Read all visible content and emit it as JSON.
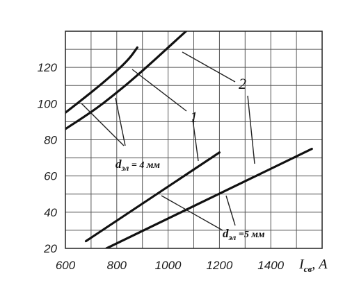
{
  "chart_data": {
    "type": "line",
    "x_label_main": "I",
    "x_label_sub": "св",
    "x_label_unit": ", А",
    "xlim": [
      600,
      1600
    ],
    "ylim": [
      20,
      140
    ],
    "x_ticks": [
      600,
      800,
      1000,
      1200,
      1400
    ],
    "y_ticks": [
      20,
      40,
      60,
      80,
      100,
      120
    ],
    "grid": true,
    "series": [
      {
        "group": "1",
        "diameter_label": "dэл = 4 мм",
        "points": [
          [
            600,
            95
          ],
          [
            700,
            106
          ],
          [
            800,
            118
          ],
          [
            850,
            125
          ],
          [
            880,
            131
          ]
        ]
      },
      {
        "group": "2",
        "diameter_label": "dэл = 4 мм",
        "points": [
          [
            600,
            86
          ],
          [
            700,
            95
          ],
          [
            800,
            106
          ],
          [
            900,
            118
          ],
          [
            1000,
            131
          ],
          [
            1070,
            140
          ]
        ]
      },
      {
        "group": "1",
        "diameter_label": "dэл = 5 мм",
        "points": [
          [
            680,
            24
          ],
          [
            1200,
            73
          ]
        ]
      },
      {
        "group": "2",
        "diameter_label": "dэл = 5 мм",
        "points": [
          [
            760,
            20
          ],
          [
            1560,
            75
          ]
        ]
      }
    ],
    "annotations": {
      "label_1": "1",
      "label_2": "2",
      "d4_main": "d",
      "d4_sub": "эл",
      "d4_rest": " = 4 мм",
      "d5_main": "d",
      "d5_sub": "эл",
      "d5_rest": " =5 мм"
    }
  }
}
